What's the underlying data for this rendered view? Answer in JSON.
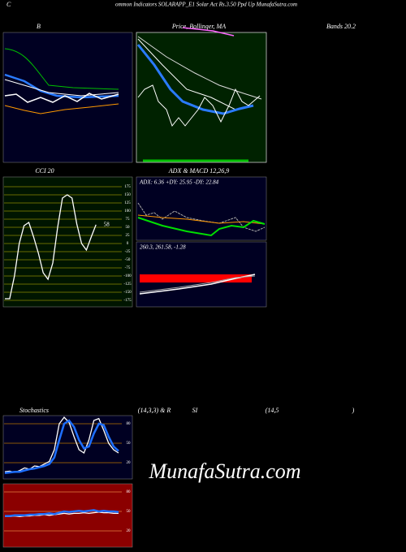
{
  "header": {
    "prefix": "C",
    "title": "ommon Indicators SOLARAPP_E1 Solar Act Rs.3.50 Ppd Up MunafaSutra.com"
  },
  "panels": {
    "bands_left": "B",
    "bands_mid": "Price, Bollinger, MA",
    "bands_right": "Bands 20.2",
    "adx_title": "ADX  & MACD 12,26,9",
    "adx_text": "ADX: 6.36  +DY: 25.95 -DY: 22.84",
    "macd_text": "260.3,  261.58,  -1.28",
    "stoch_1": "Stochastics",
    "stoch_2": "(14,3,3) & R",
    "stoch_3": "SI",
    "stoch_4": "(14,5",
    "stoch_5": ")"
  },
  "watermark": "MunafaSutra.com",
  "chart_data": [
    {
      "type": "line",
      "title": "CCI 20",
      "categories": [
        null,
        null,
        null,
        null,
        null,
        null,
        null,
        null,
        null,
        null,
        null,
        null,
        null,
        null,
        null,
        null,
        null,
        null,
        null,
        null,
        null,
        null
      ],
      "values": [
        -170,
        -170,
        -100,
        0,
        55,
        65,
        20,
        -30,
        -90,
        -110,
        -60,
        50,
        140,
        150,
        140,
        60,
        0,
        -20,
        20,
        58,
        null,
        null
      ],
      "color": "#ffffff",
      "ylim": [
        -200,
        200
      ],
      "yticks": [
        175,
        150,
        125,
        100,
        75,
        50,
        25,
        0,
        -25,
        -50,
        -75,
        -100,
        -125,
        -150,
        -175
      ],
      "grid": true
    },
    {
      "type": "line",
      "categories": [
        null,
        null,
        null,
        null,
        null,
        null,
        null,
        null,
        null,
        null,
        null,
        null,
        null,
        null,
        null,
        null,
        null,
        null,
        null,
        null,
        null,
        null,
        null,
        null
      ],
      "series": [
        {
          "color": "#ffffff",
          "values": [
            6,
            7,
            5,
            8,
            12,
            10,
            15,
            14,
            18,
            22,
            40,
            80,
            90,
            82,
            60,
            40,
            35,
            55,
            85,
            88,
            70,
            50,
            40,
            35
          ]
        },
        {
          "color": "#1e6fff",
          "values": [
            4,
            5,
            6,
            6,
            8,
            10,
            11,
            13,
            15,
            18,
            28,
            55,
            80,
            85,
            75,
            55,
            42,
            45,
            65,
            80,
            78,
            60,
            45,
            38
          ]
        }
      ],
      "ylim": [
        0,
        100
      ],
      "yticks": [
        80,
        50,
        20
      ],
      "grid": true
    },
    {
      "type": "line",
      "categories": [
        null,
        null,
        null,
        null,
        null,
        null,
        null,
        null,
        null,
        null,
        null,
        null,
        null,
        null,
        null,
        null,
        null,
        null,
        null,
        null,
        null,
        null,
        null,
        null
      ],
      "series": [
        {
          "color": "#ffffff",
          "values": [
            42,
            42,
            43,
            42,
            43,
            43,
            44,
            44,
            45,
            44,
            45,
            46,
            47,
            46,
            47,
            47,
            48,
            47,
            48,
            49,
            48,
            48,
            47,
            47
          ]
        },
        {
          "color": "#1e6fff",
          "values": [
            43,
            43,
            44,
            44,
            44,
            45,
            45,
            46,
            46,
            47,
            46,
            48,
            50,
            49,
            50,
            51,
            50,
            51,
            52,
            50,
            51,
            50,
            50,
            49
          ]
        }
      ],
      "ylim": [
        0,
        100
      ],
      "yticks": [
        80,
        50,
        20
      ],
      "grid": true
    }
  ]
}
